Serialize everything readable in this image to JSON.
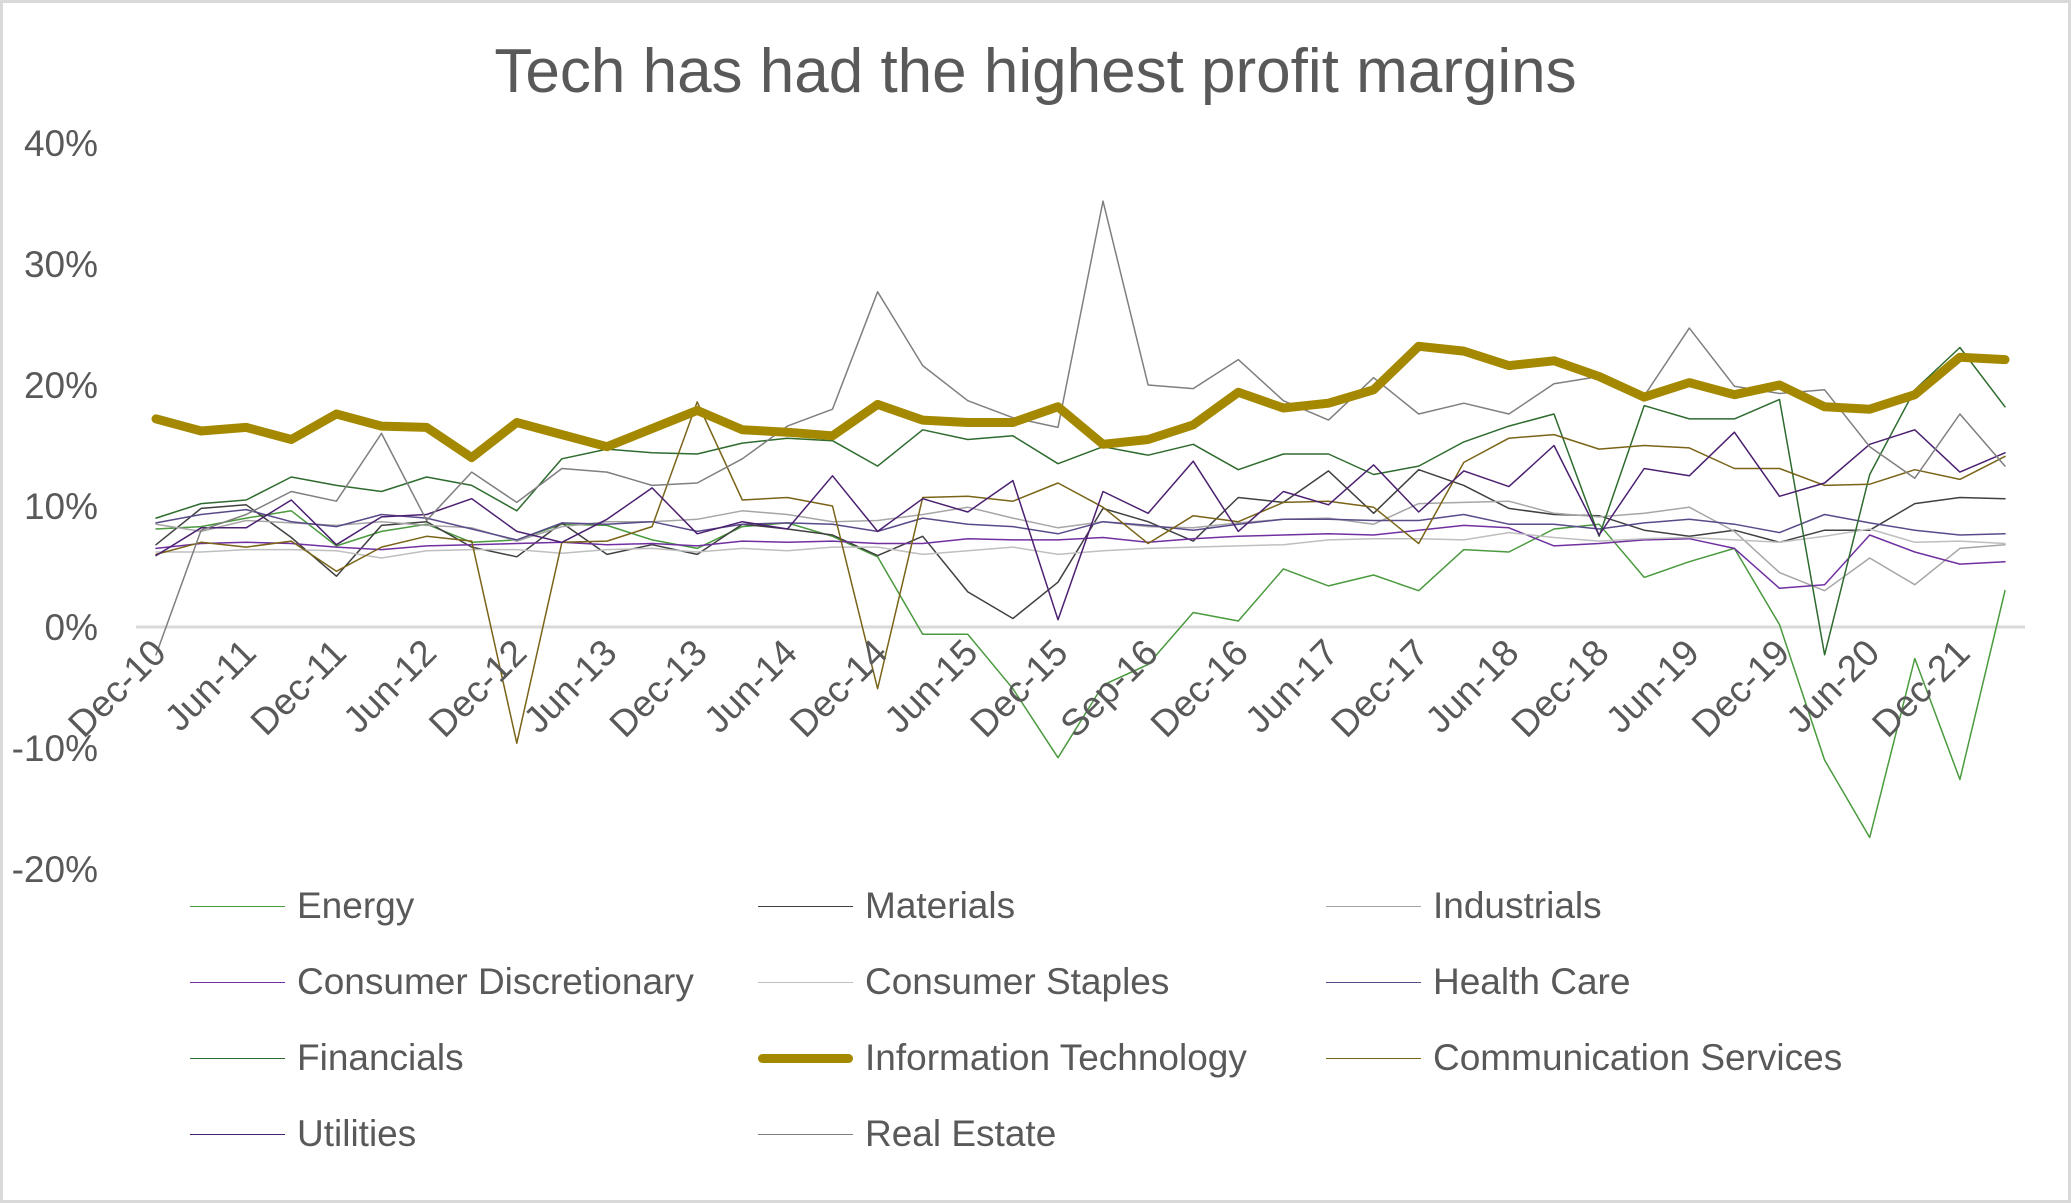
{
  "chart_data": {
    "type": "line",
    "title": "Tech has had the highest profit margins",
    "xlabel": "",
    "ylabel": "",
    "ylim": [
      -0.2,
      0.4
    ],
    "yticks": [
      -0.2,
      -0.1,
      0.0,
      0.1,
      0.2,
      0.3,
      0.4
    ],
    "ytick_labels": [
      "-20%",
      "-10%",
      "0%",
      "10%",
      "20%",
      "30%",
      "40%"
    ],
    "grid": false,
    "legend_position": "bottom",
    "x_count": 42,
    "x_labels": [
      {
        "index": 0,
        "label": "Dec-10"
      },
      {
        "index": 2,
        "label": "Jun-11"
      },
      {
        "index": 4,
        "label": "Dec-11"
      },
      {
        "index": 6,
        "label": "Jun-12"
      },
      {
        "index": 8,
        "label": "Dec-12"
      },
      {
        "index": 10,
        "label": "Jun-13"
      },
      {
        "index": 12,
        "label": "Dec-13"
      },
      {
        "index": 14,
        "label": "Jun-14"
      },
      {
        "index": 16,
        "label": "Dec-14"
      },
      {
        "index": 18,
        "label": "Jun-15"
      },
      {
        "index": 20,
        "label": "Dec-15"
      },
      {
        "index": 22,
        "label": "Sep-16"
      },
      {
        "index": 24,
        "label": "Dec-16"
      },
      {
        "index": 26,
        "label": "Jun-17"
      },
      {
        "index": 28,
        "label": "Dec-17"
      },
      {
        "index": 30,
        "label": "Jun-18"
      },
      {
        "index": 32,
        "label": "Dec-18"
      },
      {
        "index": 34,
        "label": "Jun-19"
      },
      {
        "index": 36,
        "label": "Dec-19"
      },
      {
        "index": 38,
        "label": "Jun-20"
      },
      {
        "index": 40,
        "label": "Dec-21"
      }
    ],
    "series": [
      {
        "name": "Energy",
        "color": "#4a9a3e",
        "width": 1.5,
        "values": [
          8.1,
          8.3,
          9.0,
          9.6,
          6.7,
          7.9,
          8.5,
          7.0,
          7.2,
          8.5,
          8.4,
          7.2,
          6.5,
          8.3,
          8.6,
          7.5,
          5.8,
          -0.6,
          -0.6,
          -5.1,
          -10.8,
          -4.8,
          -3.1,
          1.2,
          0.5,
          4.8,
          3.4,
          4.3,
          3.0,
          6.4,
          6.2,
          8.1,
          8.5,
          4.1,
          5.4,
          6.5,
          0.2,
          -11.0,
          -17.4,
          -2.6,
          -12.6,
          3.0
        ]
      },
      {
        "name": "Materials",
        "color": "#404040",
        "width": 1.5,
        "values": [
          6.8,
          9.8,
          10.1,
          7.4,
          4.2,
          8.4,
          8.7,
          6.6,
          5.8,
          8.6,
          6.0,
          6.8,
          6.0,
          8.5,
          8.1,
          7.6,
          5.9,
          7.5,
          2.9,
          0.7,
          3.7,
          9.8,
          8.7,
          7.1,
          10.7,
          10.3,
          12.9,
          9.4,
          13.0,
          11.7,
          9.8,
          9.3,
          9.2,
          8.0,
          7.5,
          8.0,
          7.0,
          8.0,
          8.0,
          10.2,
          10.7,
          10.6
        ]
      },
      {
        "name": "Industrials",
        "color": "#a6a6a6",
        "width": 1.5,
        "values": [
          8.5,
          7.9,
          8.8,
          8.6,
          8.4,
          8.7,
          8.4,
          8.2,
          7.1,
          8.3,
          8.7,
          8.7,
          8.9,
          9.6,
          9.3,
          8.7,
          8.8,
          9.3,
          9.9,
          9.0,
          8.2,
          8.7,
          8.3,
          8.2,
          8.6,
          8.9,
          9.0,
          8.5,
          10.2,
          10.3,
          10.4,
          9.4,
          9.1,
          9.4,
          9.9,
          7.9,
          4.5,
          3.0,
          5.7,
          3.5,
          6.5,
          6.8
        ]
      },
      {
        "name": "Consumer Discretionary",
        "color": "#7030a0",
        "width": 1.5,
        "values": [
          6.5,
          6.9,
          7.0,
          6.9,
          6.6,
          6.4,
          6.7,
          6.8,
          6.9,
          7.0,
          6.8,
          6.9,
          6.7,
          7.1,
          7.0,
          7.1,
          6.9,
          6.9,
          7.3,
          7.2,
          7.2,
          7.4,
          7.0,
          7.3,
          7.5,
          7.6,
          7.7,
          7.6,
          8.0,
          8.4,
          8.2,
          6.7,
          6.9,
          7.2,
          7.3,
          6.5,
          3.2,
          3.5,
          7.6,
          6.2,
          5.2,
          5.4
        ]
      },
      {
        "name": "Consumer Staples",
        "color": "#bfbfbf",
        "width": 1.5,
        "values": [
          6.2,
          6.2,
          6.4,
          6.4,
          6.3,
          5.7,
          6.3,
          6.4,
          6.4,
          6.1,
          6.4,
          6.5,
          6.2,
          6.5,
          6.3,
          6.6,
          6.6,
          6.0,
          6.3,
          6.6,
          6.0,
          6.3,
          6.5,
          6.6,
          6.7,
          6.8,
          7.2,
          7.3,
          7.3,
          7.2,
          7.8,
          7.4,
          7.1,
          7.3,
          7.4,
          7.2,
          7.0,
          7.5,
          8.1,
          7.0,
          7.1,
          6.9
        ]
      },
      {
        "name": "Health Care",
        "color": "#5a4a8a",
        "width": 1.5,
        "values": [
          8.6,
          9.3,
          9.7,
          8.7,
          8.3,
          9.3,
          9.0,
          8.1,
          7.2,
          8.6,
          8.5,
          8.7,
          7.9,
          8.5,
          8.6,
          8.5,
          7.9,
          9.0,
          8.5,
          8.3,
          7.7,
          8.7,
          8.4,
          8.0,
          8.5,
          8.9,
          8.9,
          8.8,
          8.8,
          9.3,
          8.5,
          8.5,
          8.1,
          8.6,
          8.9,
          8.5,
          7.8,
          9.3,
          8.6,
          8.0,
          7.6,
          7.7
        ]
      },
      {
        "name": "Financials",
        "color": "#2e6b2e",
        "width": 1.5,
        "values": [
          9.0,
          10.2,
          10.5,
          12.4,
          11.7,
          11.2,
          12.4,
          11.7,
          9.6,
          13.9,
          14.7,
          14.4,
          14.3,
          15.2,
          15.6,
          15.4,
          13.3,
          16.3,
          15.5,
          15.8,
          13.5,
          14.9,
          14.2,
          15.1,
          13.0,
          14.3,
          14.3,
          12.6,
          13.3,
          15.3,
          16.6,
          17.6,
          7.5,
          18.3,
          17.2,
          17.2,
          18.8,
          -2.3,
          12.6,
          19.6,
          23.1,
          18.2
        ]
      },
      {
        "name": "Information Technology",
        "color": "#a38800",
        "width": 9,
        "values": [
          17.2,
          16.2,
          16.5,
          15.5,
          17.6,
          16.6,
          16.5,
          14.0,
          16.9,
          15.9,
          14.9,
          16.4,
          17.9,
          16.3,
          16.1,
          15.8,
          18.4,
          17.1,
          16.9,
          16.9,
          18.2,
          15.1,
          15.5,
          16.7,
          19.4,
          18.1,
          18.5,
          19.6,
          23.2,
          22.8,
          21.6,
          22.0,
          20.7,
          19.0,
          20.2,
          19.2,
          20.0,
          18.2,
          18.0,
          19.2,
          22.3,
          22.1
        ]
      },
      {
        "name": "Communication Services",
        "color": "#7a6418",
        "width": 1.5,
        "values": [
          6.0,
          7.0,
          6.6,
          7.1,
          4.6,
          6.6,
          7.5,
          7.1,
          -9.6,
          7.0,
          7.1,
          8.3,
          18.6,
          10.5,
          10.7,
          10.0,
          -5.1,
          10.7,
          10.8,
          10.4,
          11.9,
          9.9,
          6.9,
          9.2,
          8.7,
          10.3,
          10.4,
          9.9,
          6.9,
          13.6,
          15.6,
          15.9,
          14.7,
          15.0,
          14.8,
          13.1,
          13.1,
          11.7,
          11.8,
          13.0,
          12.2,
          14.1
        ]
      },
      {
        "name": "Utilities",
        "color": "#4b2070",
        "width": 1.5,
        "values": [
          5.9,
          8.2,
          8.2,
          10.5,
          6.8,
          9.1,
          9.3,
          10.6,
          7.9,
          7.0,
          8.9,
          11.5,
          7.7,
          8.7,
          8.1,
          12.5,
          7.9,
          10.6,
          9.5,
          12.1,
          0.6,
          11.2,
          9.4,
          13.7,
          7.9,
          11.2,
          10.1,
          13.4,
          9.5,
          12.9,
          11.6,
          15.0,
          7.6,
          13.1,
          12.5,
          16.1,
          10.8,
          11.9,
          15.1,
          16.3,
          12.8,
          14.4
        ]
      },
      {
        "name": "Real Estate",
        "color": "#7f7f7f",
        "width": 1.5,
        "values": [
          -2.3,
          8.0,
          9.3,
          11.2,
          10.4,
          16.0,
          8.8,
          12.8,
          10.3,
          13.1,
          12.8,
          11.7,
          11.9,
          13.9,
          16.6,
          18.0,
          27.7,
          21.6,
          18.7,
          17.3,
          16.5,
          35.2,
          20.0,
          19.7,
          22.1,
          18.7,
          17.1,
          20.6,
          17.6,
          18.5,
          17.6,
          20.1,
          20.7,
          19.1,
          24.7,
          19.9,
          19.3,
          19.6,
          14.9,
          12.3,
          17.6,
          13.3
        ]
      }
    ]
  },
  "legend": {
    "columns": 3,
    "order": [
      "Energy",
      "Materials",
      "Industrials",
      "Consumer Discretionary",
      "Consumer Staples",
      "Health Care",
      "Financials",
      "Information Technology",
      "Communication Services",
      "Utilities",
      "Real Estate"
    ]
  }
}
